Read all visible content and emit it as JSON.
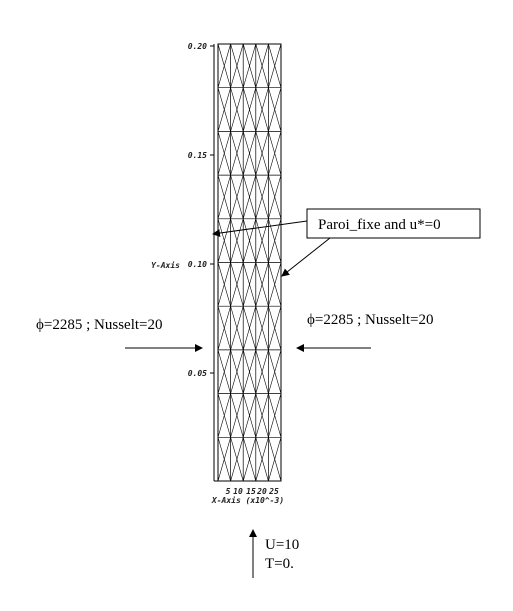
{
  "diagram": {
    "y_axis": {
      "title": "Y-Axis",
      "ticks": [
        "0.20",
        "0.15",
        "0.10",
        "0.05"
      ]
    },
    "x_axis": {
      "title": "X-Axis (x10^-3)",
      "ticks": [
        "5",
        "10",
        "15",
        "20",
        "25"
      ]
    },
    "callouts": {
      "wall": "Paroi_fixe and u*=0",
      "left_flux": "ϕ=2285 ; Nusselt=20",
      "right_flux": "ϕ=2285 ; Nusselt=20",
      "inlet_velocity": "U=10",
      "inlet_temperature": "T=0."
    }
  }
}
